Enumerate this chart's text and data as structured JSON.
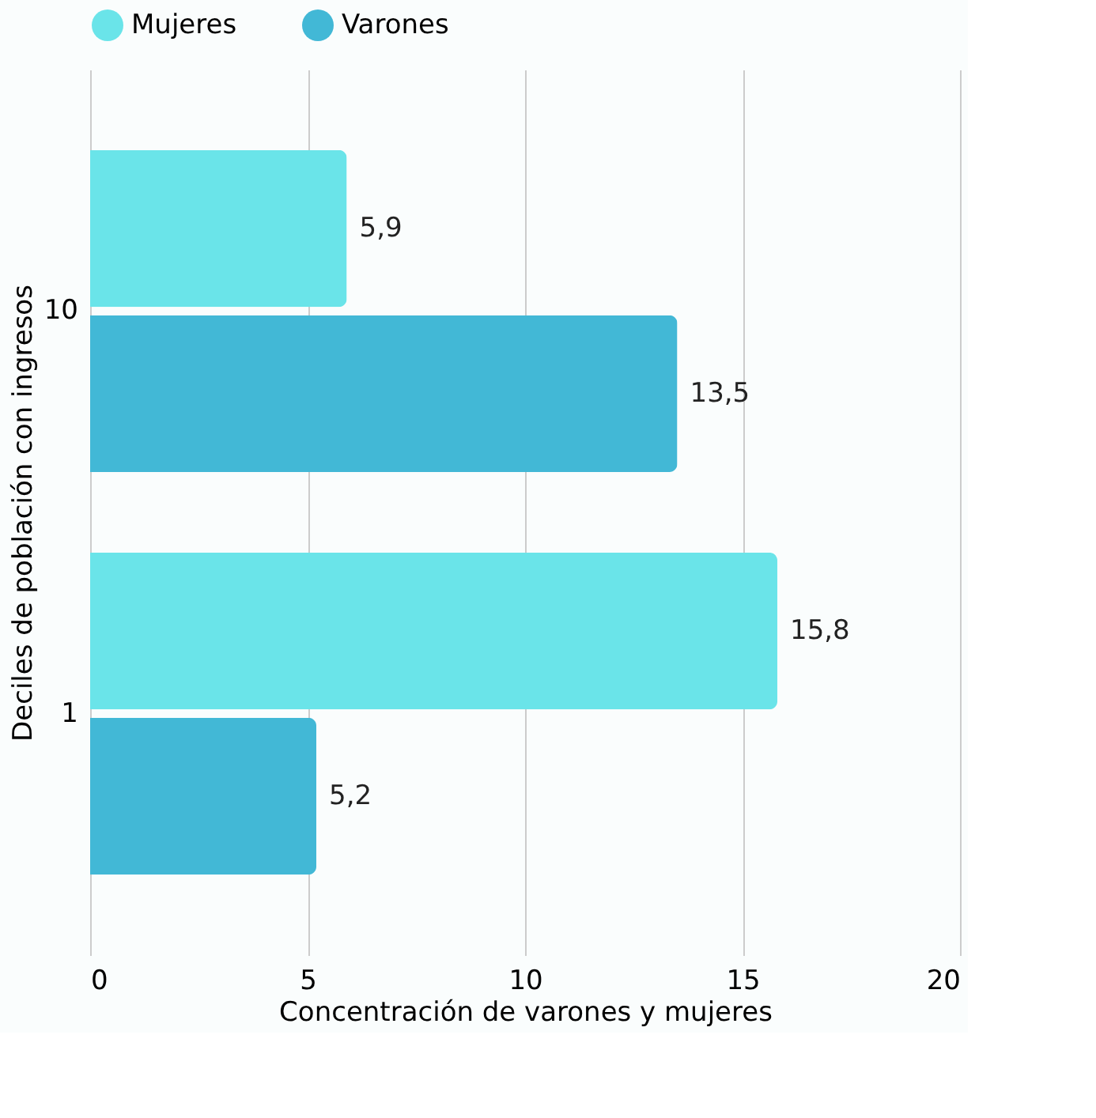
{
  "chart_data": {
    "type": "bar",
    "orientation": "horizontal",
    "xlabel": "Concentración de varones y mujeres",
    "ylabel": "Deciles de población con ingresos",
    "categories": [
      "10",
      "1"
    ],
    "series": [
      {
        "name": "Mujeres",
        "color": "#6ae4e9",
        "values": [
          5.9,
          15.8
        ],
        "value_labels": [
          "5,9",
          "15,8"
        ]
      },
      {
        "name": "Varones",
        "color": "#42b8d6",
        "values": [
          13.5,
          5.2
        ],
        "value_labels": [
          "13,5",
          "5,2"
        ]
      }
    ],
    "xlim": [
      0,
      20
    ],
    "xticks": [
      0,
      5,
      10,
      15,
      20
    ],
    "grid": "x",
    "legend": "top"
  }
}
